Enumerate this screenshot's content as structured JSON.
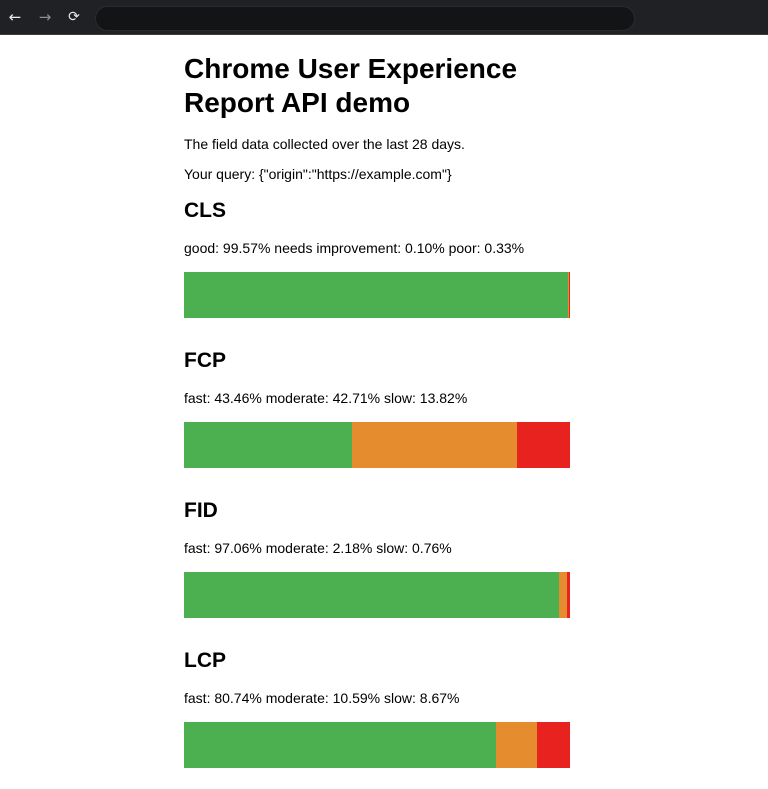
{
  "browser": {
    "back_glyph": "←",
    "forward_glyph": "→",
    "reload_glyph": "⟳",
    "address_value": ""
  },
  "page": {
    "title": "Chrome User Experience Report API demo",
    "description": "The field data collected over the last 28 days.",
    "query_text": "Your query: {\"origin\":\"https://example.com\"}"
  },
  "colors": {
    "good": "#4caf50",
    "moderate": "#e58c2f",
    "poor": "#e8231f"
  },
  "metrics": [
    {
      "name": "CLS",
      "summary": "good: 99.57% needs improvement: 0.10% poor: 0.33%",
      "segments": [
        {
          "label": "good",
          "value": 99.57,
          "color": "#4caf50"
        },
        {
          "label": "needs improvement",
          "value": 0.1,
          "color": "#e58c2f"
        },
        {
          "label": "poor",
          "value": 0.33,
          "color": "#e8231f"
        }
      ]
    },
    {
      "name": "FCP",
      "summary": "fast: 43.46% moderate: 42.71% slow: 13.82%",
      "segments": [
        {
          "label": "fast",
          "value": 43.46,
          "color": "#4caf50"
        },
        {
          "label": "moderate",
          "value": 42.71,
          "color": "#e58c2f"
        },
        {
          "label": "slow",
          "value": 13.82,
          "color": "#e8231f"
        }
      ]
    },
    {
      "name": "FID",
      "summary": "fast: 97.06% moderate: 2.18% slow: 0.76%",
      "segments": [
        {
          "label": "fast",
          "value": 97.06,
          "color": "#4caf50"
        },
        {
          "label": "moderate",
          "value": 2.18,
          "color": "#e58c2f"
        },
        {
          "label": "slow",
          "value": 0.76,
          "color": "#e8231f"
        }
      ]
    },
    {
      "name": "LCP",
      "summary": "fast: 80.74% moderate: 10.59% slow: 8.67%",
      "segments": [
        {
          "label": "fast",
          "value": 80.74,
          "color": "#4caf50"
        },
        {
          "label": "moderate",
          "value": 10.59,
          "color": "#e58c2f"
        },
        {
          "label": "slow",
          "value": 8.67,
          "color": "#e8231f"
        }
      ]
    }
  ]
}
